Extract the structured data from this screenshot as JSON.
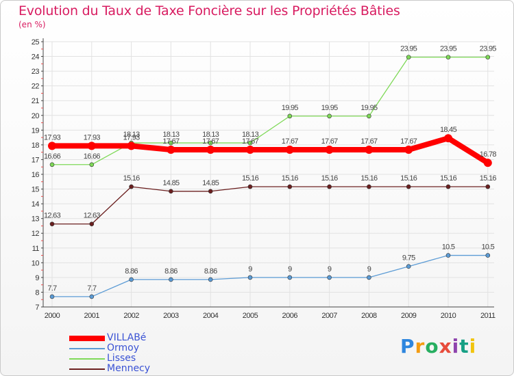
{
  "chart_data": {
    "type": "line",
    "title": "Evolution du Taux de Taxe Foncière sur les Propriétés Bâties",
    "ylabel": "(en %)",
    "xlabel": "",
    "ylim": [
      7,
      25
    ],
    "yticks": [
      "7",
      "8",
      "9",
      "10",
      "11",
      "12",
      "13",
      "14",
      "15",
      "16",
      "17",
      "18",
      "19",
      "20",
      "21",
      "22",
      "23",
      "24",
      "25"
    ],
    "categories": [
      "2000",
      "2001",
      "2002",
      "2003",
      "2004",
      "2005",
      "2006",
      "2007",
      "2008",
      "2009",
      "2010",
      "2011"
    ],
    "series": [
      {
        "name": "VILLABé",
        "color": "#ff0000",
        "values": [
          17.93,
          17.93,
          17.93,
          17.67,
          17.67,
          17.67,
          17.67,
          17.67,
          17.67,
          17.67,
          18.45,
          16.78
        ],
        "labels": [
          "17.93",
          "17.93",
          "17.93",
          "17.67",
          "17.67",
          "17.67",
          "17.67",
          "17.67",
          "17.67",
          "17.67",
          "18.45",
          "16.78"
        ]
      },
      {
        "name": "Ormoy",
        "color": "#5b9bd5",
        "values": [
          7.7,
          7.7,
          8.86,
          8.86,
          8.86,
          9,
          9,
          9,
          9,
          9.75,
          10.5,
          10.5
        ],
        "labels": [
          "7.7",
          "7.7",
          "8.86",
          "8.86",
          "8.86",
          "9",
          "9",
          "9",
          "9",
          "9.75",
          "10.5",
          "10.5"
        ]
      },
      {
        "name": "Lisses",
        "color": "#7ed957",
        "values": [
          16.66,
          16.66,
          18.13,
          18.13,
          18.13,
          18.13,
          19.95,
          19.95,
          19.95,
          23.95,
          23.95,
          23.95
        ],
        "labels": [
          "16.66",
          "16.66",
          "18.13",
          "18.13",
          "18.13",
          "18.13",
          "19.95",
          "19.95",
          "19.95",
          "23.95",
          "23.95",
          "23.95"
        ]
      },
      {
        "name": "Mennecy",
        "color": "#6b1f1f",
        "values": [
          12.63,
          12.63,
          15.16,
          14.85,
          14.85,
          15.16,
          15.16,
          15.16,
          15.16,
          15.16,
          15.16,
          15.16
        ],
        "labels": [
          "12.63",
          "12.63",
          "15.16",
          "14.85",
          "14.85",
          "15.16",
          "15.16",
          "15.16",
          "15.16",
          "15.16",
          "15.16",
          "15.16"
        ]
      }
    ]
  },
  "logo": {
    "text": "Proxiti",
    "letters": [
      "P",
      "r",
      "o",
      "x",
      "i",
      "t",
      "i"
    ]
  }
}
